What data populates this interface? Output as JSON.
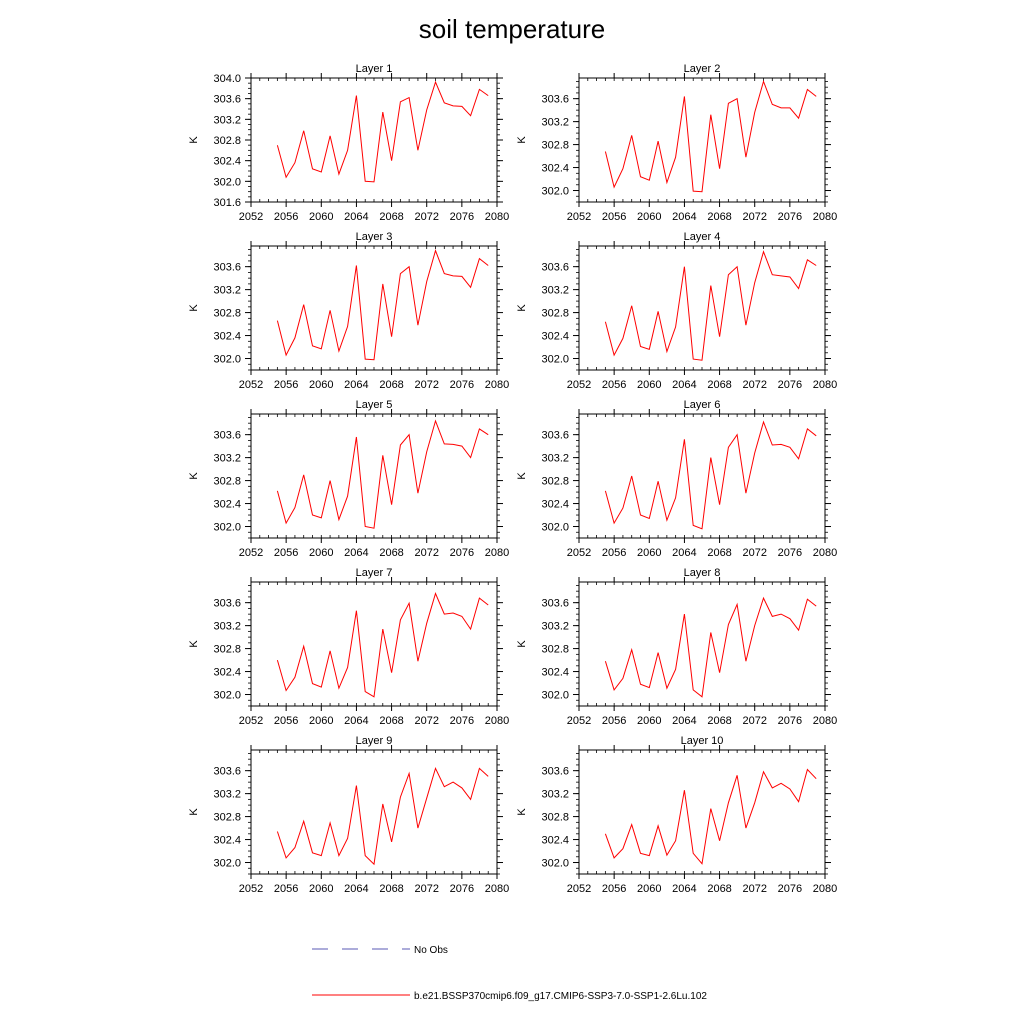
{
  "page": {
    "title": "soil temperature"
  },
  "legend": {
    "obs_label": "No Obs",
    "obs_color": "#5a5ab4",
    "model_label": "b.e21.BSSP370cmip6.f09_g17.CMIP6-SSP3-7.0-SSP1-2.6Lu.102",
    "model_color": "#ff0000"
  },
  "chart_data": [
    {
      "type": "line",
      "title": "Layer 1",
      "ylabel": "K",
      "xlim": [
        2052,
        2080
      ],
      "ylim": [
        301.6,
        304.0
      ],
      "xticks": [
        2052,
        2056,
        2060,
        2064,
        2068,
        2072,
        2076,
        2080
      ],
      "yticks": [
        301.6,
        302.0,
        302.4,
        302.8,
        303.2,
        303.6,
        304.0
      ],
      "x": [
        2055,
        2056,
        2057,
        2058,
        2059,
        2060,
        2061,
        2062,
        2063,
        2064,
        2065,
        2066,
        2067,
        2068,
        2069,
        2070,
        2071,
        2072,
        2073,
        2074,
        2075,
        2076,
        2077,
        2078,
        2079
      ],
      "series": [
        {
          "values": [
            302.7,
            302.08,
            302.36,
            302.98,
            302.24,
            302.18,
            302.88,
            302.14,
            302.6,
            303.66,
            302.0,
            301.99,
            303.34,
            302.4,
            303.54,
            303.62,
            302.6,
            303.38,
            303.92,
            303.52,
            303.46,
            303.45,
            303.27,
            303.78,
            303.66
          ]
        }
      ]
    },
    {
      "type": "line",
      "title": "Layer 2",
      "ylabel": "K",
      "xlim": [
        2052,
        2080
      ],
      "ylim": [
        301.8,
        303.96
      ],
      "xticks": [
        2052,
        2056,
        2060,
        2064,
        2068,
        2072,
        2076,
        2080
      ],
      "yticks": [
        302.0,
        302.4,
        302.8,
        303.2,
        303.6
      ],
      "x": [
        2055,
        2056,
        2057,
        2058,
        2059,
        2060,
        2061,
        2062,
        2063,
        2064,
        2065,
        2066,
        2067,
        2068,
        2069,
        2070,
        2071,
        2072,
        2073,
        2074,
        2075,
        2076,
        2077,
        2078,
        2079
      ],
      "series": [
        {
          "values": [
            302.68,
            302.06,
            302.38,
            302.96,
            302.24,
            302.18,
            302.86,
            302.14,
            302.58,
            303.64,
            301.99,
            301.98,
            303.32,
            302.38,
            303.52,
            303.6,
            302.58,
            303.36,
            303.9,
            303.5,
            303.44,
            303.44,
            303.26,
            303.76,
            303.64
          ]
        }
      ]
    },
    {
      "type": "line",
      "title": "Layer 3",
      "ylabel": "K",
      "xlim": [
        2052,
        2080
      ],
      "ylim": [
        301.8,
        303.96
      ],
      "xticks": [
        2052,
        2056,
        2060,
        2064,
        2068,
        2072,
        2076,
        2080
      ],
      "yticks": [
        302.0,
        302.4,
        302.8,
        303.2,
        303.6
      ],
      "x": [
        2055,
        2056,
        2057,
        2058,
        2059,
        2060,
        2061,
        2062,
        2063,
        2064,
        2065,
        2066,
        2067,
        2068,
        2069,
        2070,
        2071,
        2072,
        2073,
        2074,
        2075,
        2076,
        2077,
        2078,
        2079
      ],
      "series": [
        {
          "values": [
            302.66,
            302.06,
            302.36,
            302.94,
            302.22,
            302.17,
            302.84,
            302.13,
            302.56,
            303.62,
            301.99,
            301.98,
            303.3,
            302.38,
            303.48,
            303.6,
            302.58,
            303.34,
            303.88,
            303.48,
            303.44,
            303.43,
            303.24,
            303.74,
            303.62
          ]
        }
      ]
    },
    {
      "type": "line",
      "title": "Layer 4",
      "ylabel": "K",
      "xlim": [
        2052,
        2080
      ],
      "ylim": [
        301.8,
        303.96
      ],
      "xticks": [
        2052,
        2056,
        2060,
        2064,
        2068,
        2072,
        2076,
        2080
      ],
      "yticks": [
        302.0,
        302.4,
        302.8,
        303.2,
        303.6
      ],
      "x": [
        2055,
        2056,
        2057,
        2058,
        2059,
        2060,
        2061,
        2062,
        2063,
        2064,
        2065,
        2066,
        2067,
        2068,
        2069,
        2070,
        2071,
        2072,
        2073,
        2074,
        2075,
        2076,
        2077,
        2078,
        2079
      ],
      "series": [
        {
          "values": [
            302.64,
            302.06,
            302.35,
            302.92,
            302.21,
            302.16,
            302.82,
            302.12,
            302.55,
            303.6,
            301.99,
            301.97,
            303.27,
            302.38,
            303.46,
            303.6,
            302.58,
            303.32,
            303.86,
            303.46,
            303.44,
            303.42,
            303.22,
            303.72,
            303.62
          ]
        }
      ]
    },
    {
      "type": "line",
      "title": "Layer 5",
      "ylabel": "K",
      "xlim": [
        2052,
        2080
      ],
      "ylim": [
        301.8,
        303.96
      ],
      "xticks": [
        2052,
        2056,
        2060,
        2064,
        2068,
        2072,
        2076,
        2080
      ],
      "yticks": [
        302.0,
        302.4,
        302.8,
        303.2,
        303.6
      ],
      "x": [
        2055,
        2056,
        2057,
        2058,
        2059,
        2060,
        2061,
        2062,
        2063,
        2064,
        2065,
        2066,
        2067,
        2068,
        2069,
        2070,
        2071,
        2072,
        2073,
        2074,
        2075,
        2076,
        2077,
        2078,
        2079
      ],
      "series": [
        {
          "values": [
            302.62,
            302.06,
            302.33,
            302.9,
            302.2,
            302.15,
            302.8,
            302.12,
            302.53,
            303.56,
            302.0,
            301.97,
            303.24,
            302.38,
            303.42,
            303.6,
            302.58,
            303.3,
            303.84,
            303.44,
            303.43,
            303.4,
            303.2,
            303.7,
            303.6
          ]
        }
      ]
    },
    {
      "type": "line",
      "title": "Layer 6",
      "ylabel": "K",
      "xlim": [
        2052,
        2080
      ],
      "ylim": [
        301.8,
        303.96
      ],
      "xticks": [
        2052,
        2056,
        2060,
        2064,
        2068,
        2072,
        2076,
        2080
      ],
      "yticks": [
        302.0,
        302.4,
        302.8,
        303.2,
        303.6
      ],
      "x": [
        2055,
        2056,
        2057,
        2058,
        2059,
        2060,
        2061,
        2062,
        2063,
        2064,
        2065,
        2066,
        2067,
        2068,
        2069,
        2070,
        2071,
        2072,
        2073,
        2074,
        2075,
        2076,
        2077,
        2078,
        2079
      ],
      "series": [
        {
          "values": [
            302.62,
            302.06,
            302.32,
            302.88,
            302.2,
            302.14,
            302.79,
            302.11,
            302.5,
            303.52,
            302.02,
            301.96,
            303.2,
            302.38,
            303.38,
            303.6,
            302.58,
            303.28,
            303.82,
            303.42,
            303.43,
            303.38,
            303.18,
            303.7,
            303.58
          ]
        }
      ]
    },
    {
      "type": "line",
      "title": "Layer 7",
      "ylabel": "K",
      "xlim": [
        2052,
        2080
      ],
      "ylim": [
        301.8,
        303.96
      ],
      "xticks": [
        2052,
        2056,
        2060,
        2064,
        2068,
        2072,
        2076,
        2080
      ],
      "yticks": [
        302.0,
        302.4,
        302.8,
        303.2,
        303.6
      ],
      "x": [
        2055,
        2056,
        2057,
        2058,
        2059,
        2060,
        2061,
        2062,
        2063,
        2064,
        2065,
        2066,
        2067,
        2068,
        2069,
        2070,
        2071,
        2072,
        2073,
        2074,
        2075,
        2076,
        2077,
        2078,
        2079
      ],
      "series": [
        {
          "values": [
            302.6,
            302.07,
            302.3,
            302.84,
            302.19,
            302.13,
            302.76,
            302.11,
            302.47,
            303.46,
            302.05,
            301.96,
            303.14,
            302.38,
            303.3,
            303.59,
            302.58,
            303.24,
            303.76,
            303.4,
            303.42,
            303.36,
            303.14,
            303.68,
            303.56
          ]
        }
      ]
    },
    {
      "type": "line",
      "title": "Layer 8",
      "ylabel": "K",
      "xlim": [
        2052,
        2080
      ],
      "ylim": [
        301.8,
        303.96
      ],
      "xticks": [
        2052,
        2056,
        2060,
        2064,
        2068,
        2072,
        2076,
        2080
      ],
      "yticks": [
        302.0,
        302.4,
        302.8,
        303.2,
        303.6
      ],
      "x": [
        2055,
        2056,
        2057,
        2058,
        2059,
        2060,
        2061,
        2062,
        2063,
        2064,
        2065,
        2066,
        2067,
        2068,
        2069,
        2070,
        2071,
        2072,
        2073,
        2074,
        2075,
        2076,
        2077,
        2078,
        2079
      ],
      "series": [
        {
          "values": [
            302.58,
            302.08,
            302.28,
            302.78,
            302.18,
            302.12,
            302.73,
            302.11,
            302.44,
            303.4,
            302.08,
            301.96,
            303.08,
            302.38,
            303.22,
            303.57,
            302.58,
            303.2,
            303.68,
            303.36,
            303.4,
            303.32,
            303.12,
            303.66,
            303.54
          ]
        }
      ]
    },
    {
      "type": "line",
      "title": "Layer 9",
      "ylabel": "K",
      "xlim": [
        2052,
        2080
      ],
      "ylim": [
        301.8,
        303.96
      ],
      "xticks": [
        2052,
        2056,
        2060,
        2064,
        2068,
        2072,
        2076,
        2080
      ],
      "yticks": [
        302.0,
        302.4,
        302.8,
        303.2,
        303.6
      ],
      "x": [
        2055,
        2056,
        2057,
        2058,
        2059,
        2060,
        2061,
        2062,
        2063,
        2064,
        2065,
        2066,
        2067,
        2068,
        2069,
        2070,
        2071,
        2072,
        2073,
        2074,
        2075,
        2076,
        2077,
        2078,
        2079
      ],
      "series": [
        {
          "values": [
            302.54,
            302.08,
            302.26,
            302.72,
            302.17,
            302.12,
            302.69,
            302.12,
            302.42,
            303.34,
            302.12,
            301.97,
            303.02,
            302.36,
            303.14,
            303.55,
            302.6,
            303.12,
            303.64,
            303.32,
            303.4,
            303.3,
            303.1,
            303.64,
            303.5
          ]
        }
      ]
    },
    {
      "type": "line",
      "title": "Layer 10",
      "ylabel": "K",
      "xlim": [
        2052,
        2080
      ],
      "ylim": [
        301.8,
        303.96
      ],
      "xticks": [
        2052,
        2056,
        2060,
        2064,
        2068,
        2072,
        2076,
        2080
      ],
      "yticks": [
        302.0,
        302.4,
        302.8,
        303.2,
        303.6
      ],
      "x": [
        2055,
        2056,
        2057,
        2058,
        2059,
        2060,
        2061,
        2062,
        2063,
        2064,
        2065,
        2066,
        2067,
        2068,
        2069,
        2070,
        2071,
        2072,
        2073,
        2074,
        2075,
        2076,
        2077,
        2078,
        2079
      ],
      "series": [
        {
          "values": [
            302.5,
            302.08,
            302.24,
            302.66,
            302.16,
            302.12,
            302.64,
            302.13,
            302.38,
            303.26,
            302.16,
            301.98,
            302.94,
            302.38,
            303.04,
            303.52,
            302.6,
            303.04,
            303.58,
            303.3,
            303.38,
            303.28,
            303.06,
            303.62,
            303.46
          ]
        }
      ]
    }
  ]
}
